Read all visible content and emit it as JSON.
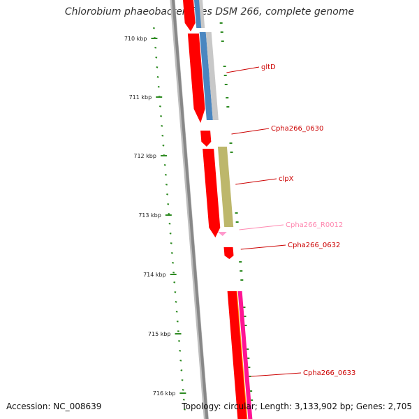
{
  "title": "Chlorobium phaeobacteroides DSM 266, complete genome",
  "footer": {
    "accession": "Accession: NC_008639",
    "summary": "Topology: circular; Length: 3,133,902 bp; Genes: 2,705"
  },
  "colors": {
    "backbone": "#888888",
    "gc_ticks": "#2e8b22",
    "cds_forward": "#ff0000",
    "label_line": "#cc0000",
    "label_text": "#cc0000",
    "rrna_label": "#ff88b0",
    "rrna_mark": "#ff99cc",
    "cog_steelblue": "#4a86c0",
    "cog_grey": "#c8c8c8",
    "cog_olive": "#bdb76b",
    "cog_orange": "#ff9900",
    "cog_pink": "#ff1493"
  },
  "chart_data": {
    "type": "genome-map",
    "axis_unit": "kbp",
    "ticks": [
      {
        "label": "710 kbp"
      },
      {
        "label": "711 kbp"
      },
      {
        "label": "712 kbp"
      },
      {
        "label": "713 kbp"
      },
      {
        "label": "714 kbp"
      },
      {
        "label": "715 kbp"
      },
      {
        "label": "716 kbp"
      }
    ],
    "features": [
      {
        "name": "gltD",
        "label_color": "#cc0000"
      },
      {
        "name": "Cpha266_0630",
        "label_color": "#cc0000"
      },
      {
        "name": "clpX",
        "label_color": "#cc0000"
      },
      {
        "name": "Cpha266_R0012",
        "label_color": "#ff88b0"
      },
      {
        "name": "Cpha266_0632",
        "label_color": "#cc0000"
      },
      {
        "name": "Cpha266_0633",
        "label_color": "#cc0000"
      }
    ]
  }
}
